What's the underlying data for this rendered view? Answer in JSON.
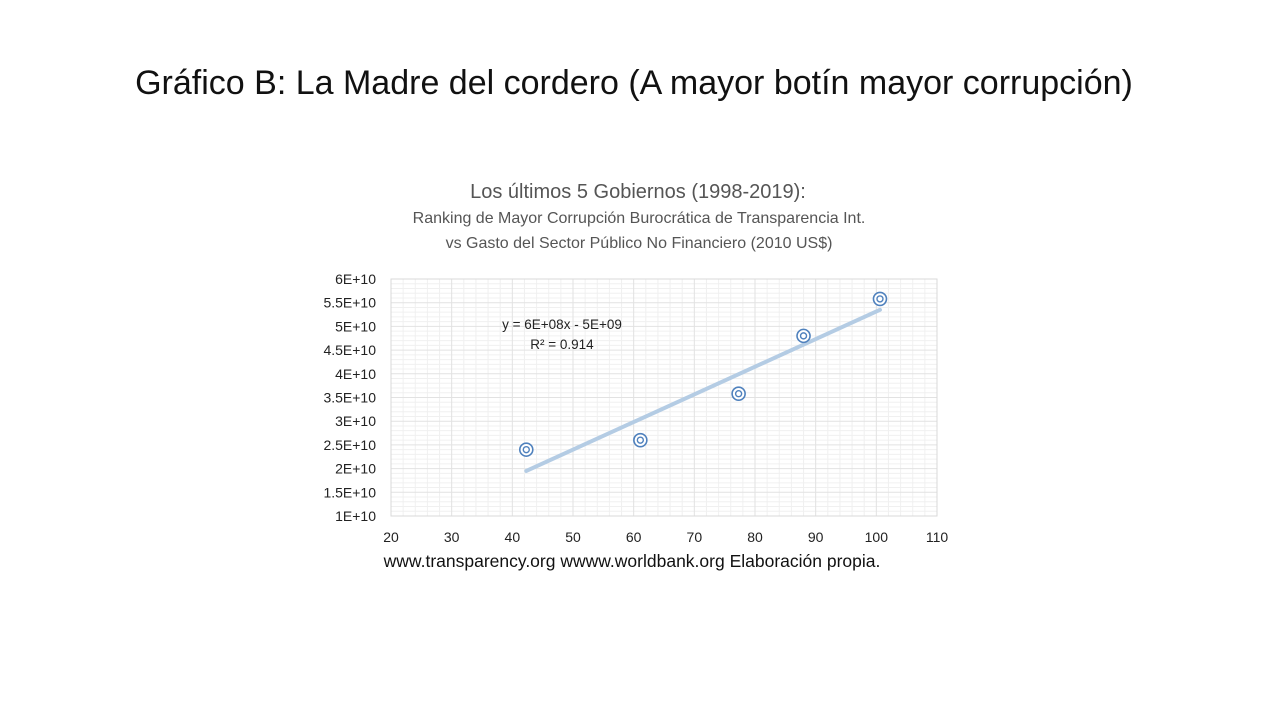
{
  "slide": {
    "title": "Gráfico B: La Madre del cordero (A mayor botín mayor corrupción)",
    "source_note": "www.transparency.org wwww.worldbank.org Elaboración propia."
  },
  "chart_data": {
    "type": "scatter",
    "title": "Los últimos 5 Gobiernos (1998-2019):",
    "subtitle_lines": [
      "Ranking de Mayor Corrupción Burocrática de Transparencia Int.",
      "vs Gasto del Sector Público No Financiero (2010 US$)"
    ],
    "xlabel": "",
    "ylabel": "",
    "xlim": [
      20,
      110
    ],
    "ylim": [
      10000000000,
      60000000000
    ],
    "x_ticks": [
      20,
      30,
      40,
      50,
      60,
      70,
      80,
      90,
      100,
      110
    ],
    "x_tick_labels": [
      "20",
      "30",
      "40",
      "50",
      "60",
      "70",
      "80",
      "90",
      "100",
      "110"
    ],
    "y_ticks": [
      10000000000,
      15000000000,
      20000000000,
      25000000000,
      30000000000,
      35000000000,
      40000000000,
      45000000000,
      50000000000,
      55000000000,
      60000000000
    ],
    "y_tick_labels": [
      "1E+10",
      "1.5E+10",
      "2E+10",
      "2.5E+10",
      "3E+10",
      "3.5E+10",
      "4E+10",
      "4.5E+10",
      "5E+10",
      "5.5E+10",
      "6E+10"
    ],
    "grid": true,
    "series": [
      {
        "points": [
          {
            "x": 42.3,
            "y": 24000000000
          },
          {
            "x": 61.1,
            "y": 26000000000
          },
          {
            "x": 77.3,
            "y": 35800000000
          },
          {
            "x": 88.0,
            "y": 48000000000
          },
          {
            "x": 100.6,
            "y": 55800000000
          }
        ],
        "color": "#4f81bd"
      }
    ],
    "trendline": {
      "type": "linear",
      "x_range": [
        42.3,
        100.6
      ],
      "y_range": [
        19500000000,
        53500000000
      ],
      "color": "#b4cce4",
      "equation": "y = 6E+08x - 5E+09",
      "r_squared": "R² = 0.914"
    },
    "colors": {
      "grid": "#e2e2e2",
      "frame": "#d9d9d9",
      "title_text": "#555555",
      "tick_text": "#222222"
    }
  }
}
